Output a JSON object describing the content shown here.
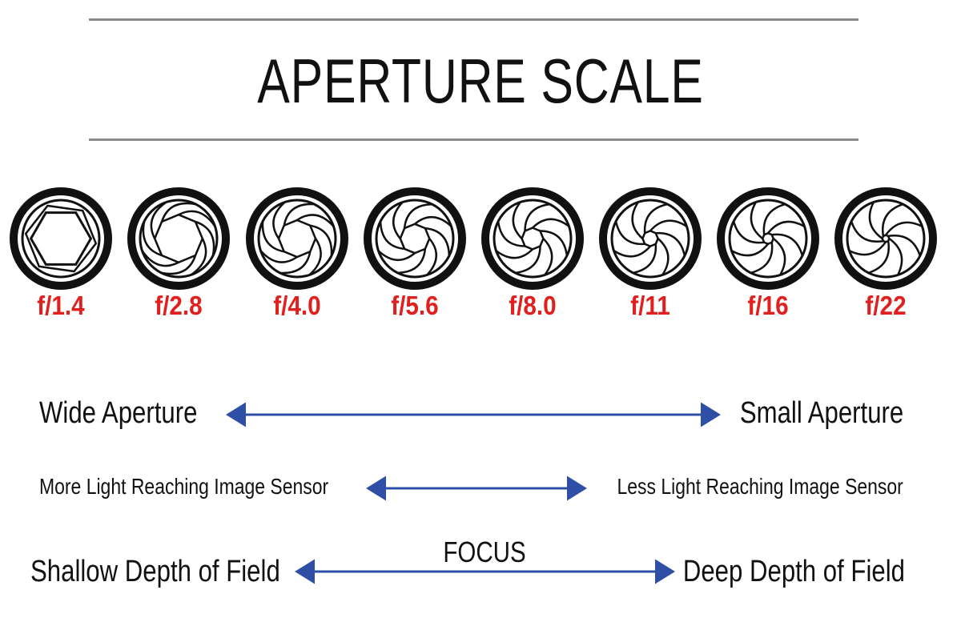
{
  "title": "APERTURE SCALE",
  "stops": [
    {
      "label": "f/1.4",
      "blades": 6,
      "opening": 0.78
    },
    {
      "label": "f/2.8",
      "blades": 8,
      "opening": 0.62
    },
    {
      "label": "f/4.0",
      "blades": 8,
      "opening": 0.48
    },
    {
      "label": "f/5.6",
      "blades": 8,
      "opening": 0.38
    },
    {
      "label": "f/8.0",
      "blades": 8,
      "opening": 0.28
    },
    {
      "label": "f/11",
      "blades": 8,
      "opening": 0.2
    },
    {
      "label": "f/16",
      "blades": 8,
      "opening": 0.14
    },
    {
      "label": "f/22",
      "blades": 8,
      "opening": 0.09
    }
  ],
  "rows": {
    "aperture": {
      "left": "Wide Aperture",
      "right": "Small Aperture"
    },
    "light": {
      "left": "More Light Reaching Image Sensor",
      "right": "Less Light Reaching Image Sensor"
    },
    "depth": {
      "left": "Shallow Depth of Field",
      "right": "Deep Depth of Field",
      "center": "FOCUS"
    }
  },
  "colors": {
    "stop_label": "#e0201e",
    "arrow": "#2f4fa6",
    "icon": "#111111",
    "rule": "#8a8a8a"
  }
}
